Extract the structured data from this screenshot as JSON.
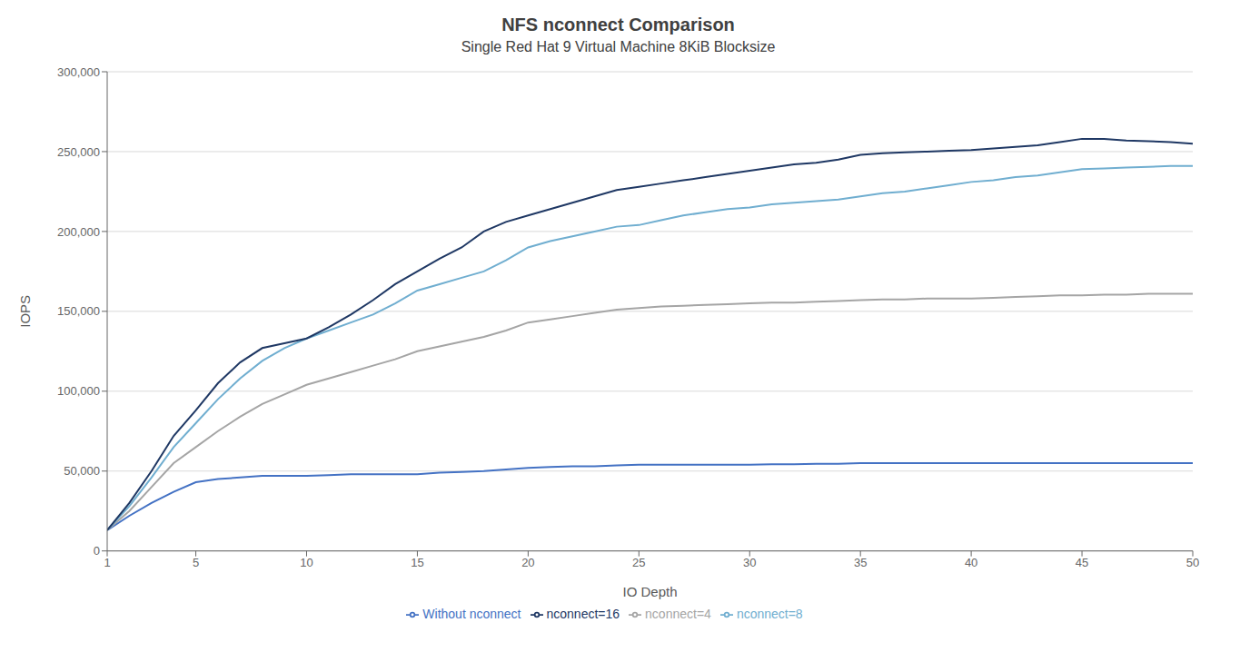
{
  "chart_data": {
    "type": "line",
    "title": "NFS nconnect Comparison",
    "subtitle": "Single Red Hat 9 Virtual Machine 8KiB Blocksize",
    "x_label": "IO Depth",
    "y_label": "IOPS",
    "x": [
      1,
      2,
      3,
      4,
      5,
      6,
      7,
      8,
      9,
      10,
      11,
      12,
      13,
      14,
      15,
      16,
      17,
      18,
      19,
      20,
      21,
      22,
      23,
      24,
      25,
      26,
      27,
      28,
      29,
      30,
      31,
      32,
      33,
      34,
      35,
      36,
      37,
      38,
      39,
      40,
      41,
      42,
      43,
      44,
      45,
      46,
      47,
      48,
      49,
      50
    ],
    "xlim": [
      1,
      50
    ],
    "xticks": [
      1,
      5,
      10,
      15,
      20,
      25,
      30,
      35,
      40,
      45,
      50
    ],
    "ylim": [
      0,
      300000
    ],
    "yticks": [
      {
        "value": 0,
        "label": "0"
      },
      {
        "value": 50000,
        "label": "50,000"
      },
      {
        "value": 100000,
        "label": "100,000"
      },
      {
        "value": 150000,
        "label": "150,000"
      },
      {
        "value": 200000,
        "label": "200,000"
      },
      {
        "value": 250000,
        "label": "250,000"
      },
      {
        "value": 300000,
        "label": "300,000"
      }
    ],
    "grid": "y",
    "legend": "bottom",
    "series": [
      {
        "name": "Without nconnect",
        "color": "#4472C4",
        "values": [
          13000,
          22000,
          30000,
          37000,
          43000,
          45000,
          46000,
          47000,
          47000,
          47000,
          47500,
          48000,
          48000,
          48000,
          48000,
          49000,
          49500,
          50000,
          51000,
          52000,
          52500,
          53000,
          53000,
          53500,
          54000,
          54000,
          54000,
          54000,
          54000,
          54000,
          54200,
          54200,
          54500,
          54500,
          55000,
          55000,
          55000,
          55000,
          55000,
          55000,
          55000,
          55000,
          55000,
          55000,
          55000,
          55000,
          55000,
          55000,
          55000,
          55000
        ]
      },
      {
        "name": "nconnect=4",
        "color": "#A5A5A5",
        "values": [
          13000,
          25000,
          40000,
          55000,
          65000,
          75000,
          84000,
          92000,
          98000,
          104000,
          108000,
          112000,
          116000,
          120000,
          125000,
          128000,
          131000,
          134000,
          138000,
          143000,
          145000,
          147000,
          149000,
          151000,
          152000,
          153000,
          153500,
          154000,
          154500,
          155000,
          155500,
          155500,
          156000,
          156500,
          157000,
          157500,
          157500,
          158000,
          158000,
          158000,
          158500,
          159000,
          159500,
          160000,
          160000,
          160500,
          160500,
          161000,
          161000,
          161000
        ]
      },
      {
        "name": "nconnect=8",
        "color": "#70AED0",
        "values": [
          13000,
          28000,
          46000,
          65000,
          80000,
          95000,
          108000,
          119000,
          127000,
          133000,
          138000,
          143000,
          148000,
          155000,
          163000,
          167000,
          171000,
          175000,
          182000,
          190000,
          194000,
          197000,
          200000,
          203000,
          204000,
          207000,
          210000,
          212000,
          214000,
          215000,
          217000,
          218000,
          219000,
          220000,
          222000,
          224000,
          225000,
          227000,
          229000,
          231000,
          232000,
          234000,
          235000,
          237000,
          239000,
          239500,
          240000,
          240500,
          241000,
          241000
        ]
      },
      {
        "name": "nconnect=16",
        "color": "#1F3864",
        "values": [
          13000,
          30000,
          50000,
          72000,
          88000,
          105000,
          118000,
          127000,
          130000,
          133000,
          140000,
          148000,
          157000,
          167000,
          175000,
          183000,
          190000,
          200000,
          206000,
          210000,
          214000,
          218000,
          222000,
          226000,
          228000,
          230000,
          232000,
          234000,
          236000,
          238000,
          240000,
          242000,
          243000,
          245000,
          248000,
          249000,
          249500,
          250000,
          250500,
          251000,
          252000,
          253000,
          254000,
          256000,
          258000,
          258000,
          257000,
          256500,
          256000,
          255000
        ]
      }
    ]
  }
}
